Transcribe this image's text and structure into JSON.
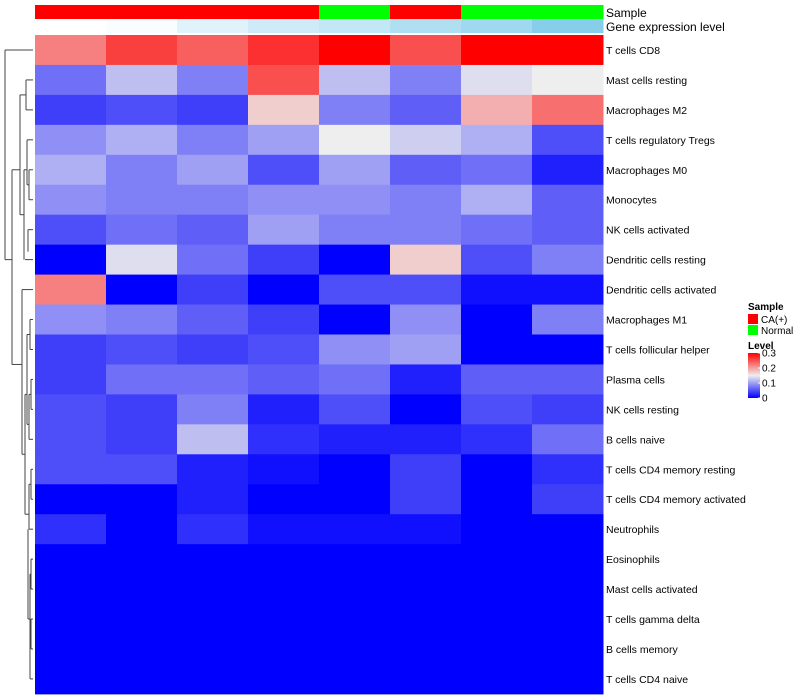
{
  "chart_data": {
    "type": "heatmap",
    "annotation_tracks": [
      {
        "name": "Sample",
        "values": [
          "CA(+)",
          "CA(+)",
          "CA(+)",
          "CA(+)",
          "Normal",
          "CA(+)",
          "Normal",
          "Normal"
        ]
      },
      {
        "name": "Gene expression level",
        "values": [
          0.0,
          0.05,
          0.25,
          0.4,
          0.5,
          0.65,
          0.8,
          1.0
        ]
      }
    ],
    "rows": [
      "T cells CD8",
      "Mast cells resting",
      "Macrophages M2",
      "T cells regulatory  Tregs",
      "Macrophages M0",
      "Monocytes",
      "NK cells activated",
      "Dendritic cells resting",
      "Dendritic cells activated",
      "Macrophages M1",
      "T cells follicular helper",
      "Plasma cells",
      "NK cells resting",
      "B cells naive",
      "T cells CD4 memory resting",
      "T cells CD4 memory activated",
      "Neutrophils",
      "Eosinophils",
      "Mast cells activated",
      "T cells gamma delta",
      "B cells memory",
      "T cells CD4 naive"
    ],
    "values": [
      [
        0.22,
        0.26,
        0.24,
        0.27,
        0.3,
        0.25,
        0.3,
        0.3
      ],
      [
        0.07,
        0.12,
        0.08,
        0.25,
        0.12,
        0.08,
        0.14,
        0.15
      ],
      [
        0.04,
        0.05,
        0.04,
        0.17,
        0.08,
        0.06,
        0.19,
        0.23
      ],
      [
        0.09,
        0.11,
        0.08,
        0.1,
        0.15,
        0.13,
        0.11,
        0.05
      ],
      [
        0.11,
        0.08,
        0.1,
        0.05,
        0.1,
        0.06,
        0.07,
        0.02
      ],
      [
        0.09,
        0.08,
        0.08,
        0.09,
        0.09,
        0.08,
        0.11,
        0.06
      ],
      [
        0.05,
        0.07,
        0.06,
        0.1,
        0.08,
        0.08,
        0.07,
        0.06
      ],
      [
        0.0,
        0.14,
        0.07,
        0.04,
        0.0,
        0.17,
        0.05,
        0.08
      ],
      [
        0.22,
        0.0,
        0.04,
        0.0,
        0.05,
        0.05,
        0.01,
        0.01
      ],
      [
        0.09,
        0.08,
        0.06,
        0.04,
        0.0,
        0.09,
        0.0,
        0.08
      ],
      [
        0.04,
        0.05,
        0.04,
        0.05,
        0.09,
        0.1,
        0.0,
        0.0
      ],
      [
        0.04,
        0.07,
        0.07,
        0.06,
        0.07,
        0.02,
        0.06,
        0.06
      ],
      [
        0.05,
        0.04,
        0.08,
        0.02,
        0.05,
        0.0,
        0.05,
        0.04
      ],
      [
        0.05,
        0.04,
        0.12,
        0.03,
        0.02,
        0.02,
        0.03,
        0.07
      ],
      [
        0.05,
        0.05,
        0.02,
        0.01,
        0.0,
        0.04,
        0.0,
        0.03
      ],
      [
        0.0,
        0.0,
        0.02,
        0.0,
        0.0,
        0.04,
        0.0,
        0.04
      ],
      [
        0.03,
        0.0,
        0.03,
        0.01,
        0.01,
        0.01,
        0.0,
        0.0
      ],
      [
        0.0,
        0.0,
        0.0,
        0.0,
        0.0,
        0.0,
        0.0,
        0.0
      ],
      [
        0.0,
        0.0,
        0.0,
        0.0,
        0.0,
        0.0,
        0.0,
        0.0
      ],
      [
        0.0,
        0.0,
        0.0,
        0.0,
        0.0,
        0.0,
        0.0,
        0.0
      ],
      [
        0.0,
        0.0,
        0.0,
        0.0,
        0.0,
        0.0,
        0.0,
        0.0
      ],
      [
        0.0,
        0.0,
        0.0,
        0.0,
        0.0,
        0.0,
        0.0,
        0.0
      ]
    ],
    "color_scale": {
      "low": "#0000FF",
      "mid": "#EEEEEE",
      "high": "#FF0000",
      "domain": [
        0,
        0.15,
        0.3
      ]
    },
    "gene_expression_colors": {
      "low": "#FFFFFF",
      "high": "#87CEEB"
    },
    "sample_colors": {
      "CA(+)": "#FF0000",
      "Normal": "#00FF00"
    },
    "legend": {
      "sample_title": "Sample",
      "sample_items": [
        "CA(+)",
        "Normal"
      ],
      "level_title": "Level",
      "level_ticks": [
        "0.3",
        "0.2",
        "0.1",
        "0"
      ],
      "level_tick_values": [
        0.3,
        0.2,
        0.1,
        0
      ],
      "placement": "right"
    },
    "row_dendrogram": "left",
    "column_dendrogram": "none"
  }
}
